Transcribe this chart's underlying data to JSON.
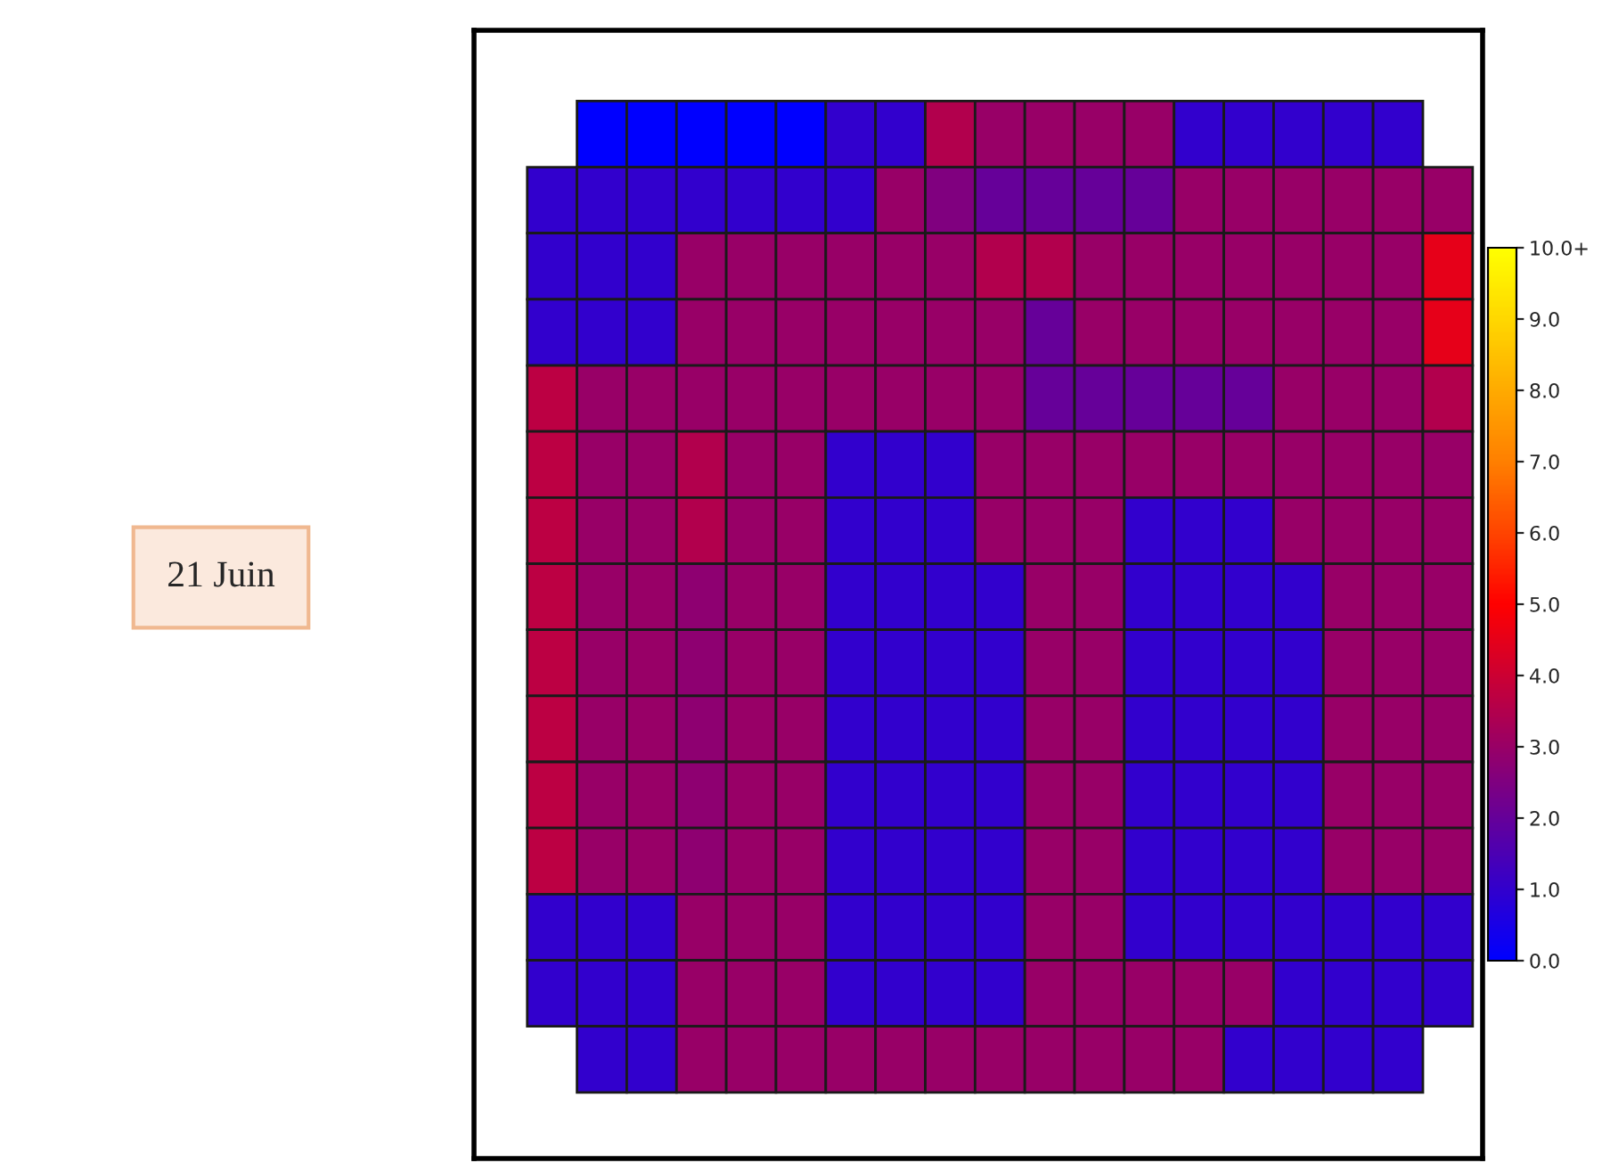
{
  "chart_data": {
    "type": "heatmap",
    "annotations": [
      "21 Juin"
    ],
    "categories": [
      null,
      null,
      null,
      null,
      null,
      null,
      null,
      null,
      null,
      null,
      null,
      null,
      null,
      null,
      null,
      null,
      null,
      null,
      null
    ],
    "y_categories": [
      null,
      null,
      null,
      null,
      null,
      null,
      null,
      null,
      null,
      null,
      null,
      null,
      null,
      null,
      null
    ],
    "cells": [
      [
        null,
        0,
        0,
        0,
        0,
        0,
        1,
        1,
        3.5,
        3,
        3,
        3,
        3,
        1,
        1,
        1,
        1,
        1,
        null
      ],
      [
        1,
        1,
        1,
        1,
        1,
        1,
        1,
        3,
        2.5,
        2,
        2,
        2,
        2,
        3,
        3,
        3,
        3,
        3,
        3
      ],
      [
        1,
        1,
        1,
        3,
        3,
        3,
        3,
        3,
        3,
        3.5,
        3.5,
        3,
        3,
        3,
        3,
        3,
        3,
        3,
        4.5
      ],
      [
        1,
        1,
        1,
        3,
        3,
        3,
        3,
        3,
        3,
        3,
        2,
        3,
        3,
        3,
        3,
        3,
        3,
        3,
        4.5
      ],
      [
        3.7,
        3,
        3,
        3,
        3,
        3,
        3,
        3,
        3,
        3,
        2,
        2,
        2,
        2,
        2,
        3,
        3,
        3,
        3.5
      ],
      [
        3.7,
        3,
        3,
        3.5,
        3,
        3,
        1,
        1,
        1,
        3,
        3,
        3,
        3,
        3,
        3,
        3,
        3,
        3,
        3
      ],
      [
        3.7,
        3,
        3,
        3.5,
        3,
        3,
        1,
        1,
        1,
        3,
        3,
        3,
        1,
        1,
        1,
        3,
        3,
        3,
        3
      ],
      [
        3.7,
        3,
        3,
        2.8,
        3,
        3,
        1,
        1,
        1,
        1,
        3,
        3,
        1,
        1,
        1,
        1,
        3,
        3,
        3
      ],
      [
        3.7,
        3,
        3,
        2.8,
        3,
        3,
        1,
        1,
        1,
        1,
        3,
        3,
        1,
        1,
        1,
        1,
        3,
        3,
        3
      ],
      [
        3.7,
        3,
        3,
        2.8,
        3,
        3,
        1,
        1,
        1,
        1,
        3,
        3,
        1,
        1,
        1,
        1,
        3,
        3,
        3
      ],
      [
        3.7,
        3,
        3,
        2.8,
        3,
        3,
        1,
        1,
        1,
        1,
        3,
        3,
        1,
        1,
        1,
        1,
        3,
        3,
        3
      ],
      [
        3.7,
        3,
        3,
        2.8,
        3,
        3,
        1,
        1,
        1,
        1,
        3,
        3,
        1,
        1,
        1,
        1,
        3,
        3,
        3
      ],
      [
        1,
        1,
        1,
        3,
        3,
        3,
        1,
        1,
        1,
        1,
        3,
        3,
        1,
        1,
        1,
        1,
        1,
        1,
        1
      ],
      [
        1,
        1,
        1,
        3,
        3,
        3,
        1,
        1,
        1,
        1,
        3,
        3,
        3,
        3,
        3,
        1,
        1,
        1,
        1
      ],
      [
        null,
        1,
        1,
        3,
        3,
        3,
        3,
        3,
        3,
        3,
        3,
        3,
        3,
        3,
        1,
        1,
        1,
        1,
        null
      ]
    ],
    "colors": [
      "#0000ff",
      "#3300cc",
      "#660099",
      "#990066",
      "#cc0033",
      "#ff0000",
      "#ff4400",
      "#ff7f00",
      "#ffaa00",
      "#ffd700",
      "#ffff00"
    ],
    "clim": [
      0,
      10
    ],
    "cticks": [
      {
        "value": 0,
        "label": "0.0"
      },
      {
        "value": 1,
        "label": "1.0"
      },
      {
        "value": 2,
        "label": "2.0"
      },
      {
        "value": 3,
        "label": "3.0"
      },
      {
        "value": 4,
        "label": "4.0"
      },
      {
        "value": 5,
        "label": "5.0"
      },
      {
        "value": 6,
        "label": "6.0"
      },
      {
        "value": 7,
        "label": "7.0"
      },
      {
        "value": 8,
        "label": "8.0"
      },
      {
        "value": 9,
        "label": "9.0"
      },
      {
        "value": 10,
        "label": "10.0+"
      }
    ]
  }
}
